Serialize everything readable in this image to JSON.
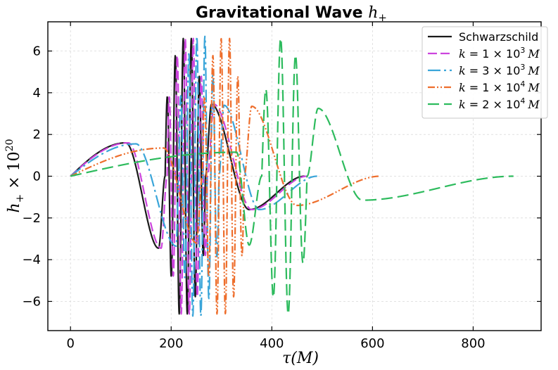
{
  "chart_data": {
    "type": "line",
    "title": "Gravitational Wave ",
    "title_symbol": "h",
    "title_symbol_sub": "+",
    "xlabel": "τ(M)",
    "ylabel": "h",
    "ylabel_sub": "+",
    "ylabel_suffix": " × 10",
    "ylabel_exp": "20",
    "xlim": [
      -45,
      935
    ],
    "ylim": [
      -7.4,
      7.4
    ],
    "xticks": [
      0,
      200,
      400,
      600,
      800
    ],
    "yticks": [
      -6,
      -4,
      -2,
      0,
      2,
      4,
      6
    ],
    "grid": true,
    "legend_position": "top-right",
    "series": [
      {
        "name": "Schwarzschild",
        "legend": {
          "text": "Schwarzschild"
        },
        "color": "#1a1a1a",
        "dash": "",
        "tau_end": 465,
        "tau_peak": 110,
        "peak_amp": 1.6,
        "tau_min": 175,
        "min_amp": -3.45,
        "tau_merge": 280,
        "merge_amp": 3.45,
        "tau_trough": 355,
        "trough_amp": -1.6,
        "osc_start": 188,
        "osc_end": 268,
        "osc_amp": 6.6,
        "osc_cycles": 5
      },
      {
        "name": "k = 1 × 10^3 M",
        "legend": {
          "pre": "k",
          "mid": " = 1 × 10",
          "exp": "3",
          "post": "M"
        },
        "color": "#cc44dd",
        "dash": "13 5",
        "tau_end": 470,
        "tau_peak": 115,
        "peak_amp": 1.6,
        "tau_min": 180,
        "min_amp": -3.45,
        "tau_merge": 285,
        "merge_amp": 3.45,
        "tau_trough": 360,
        "trough_amp": -1.6,
        "osc_start": 192,
        "osc_end": 272,
        "osc_amp": 6.6,
        "osc_cycles": 5
      },
      {
        "name": "k = 3 × 10^3 M",
        "legend": {
          "pre": "k",
          "mid": " = 3 × 10",
          "exp": "3",
          "post": "M"
        },
        "color": "#3aa5d9",
        "dash": "18 5 3 5",
        "tau_end": 490,
        "tau_peak": 130,
        "peak_amp": 1.55,
        "tau_min": 210,
        "min_amp": -3.35,
        "tau_merge": 305,
        "merge_amp": 3.4,
        "tau_trough": 375,
        "trough_amp": -1.6,
        "osc_start": 215,
        "osc_end": 295,
        "osc_amp": 6.7,
        "osc_cycles": 5
      },
      {
        "name": "k = 1 × 10^4 M",
        "legend": {
          "pre": "k",
          "mid": " = 1 × 10",
          "exp": "4",
          "post": "M"
        },
        "color": "#ee6e2c",
        "dash": "10 3 2 3 2 3",
        "tau_end": 615,
        "tau_peak": 185,
        "peak_amp": 1.35,
        "tau_min": 250,
        "min_amp": -3.2,
        "tau_merge": 360,
        "merge_amp": 3.35,
        "tau_trough": 450,
        "trough_amp": -1.4,
        "osc_start": 262,
        "osc_end": 345,
        "osc_amp": 6.6,
        "osc_cycles": 5
      },
      {
        "name": "k = 2 × 10^4 M",
        "legend": {
          "pre": "k",
          "mid": " = 2 × 10",
          "exp": "4",
          "post": "M"
        },
        "color": "#2dbb5d",
        "dash": "16 7",
        "tau_end": 880,
        "tau_peak": 330,
        "peak_amp": 1.15,
        "tau_min": 355,
        "min_amp": -3.3,
        "tau_merge": 492,
        "merge_amp": 3.25,
        "tau_trough": 580,
        "trough_amp": -1.15,
        "osc_start": 380,
        "osc_end": 470,
        "osc_amp": 6.6,
        "osc_cycles": 3
      }
    ]
  }
}
